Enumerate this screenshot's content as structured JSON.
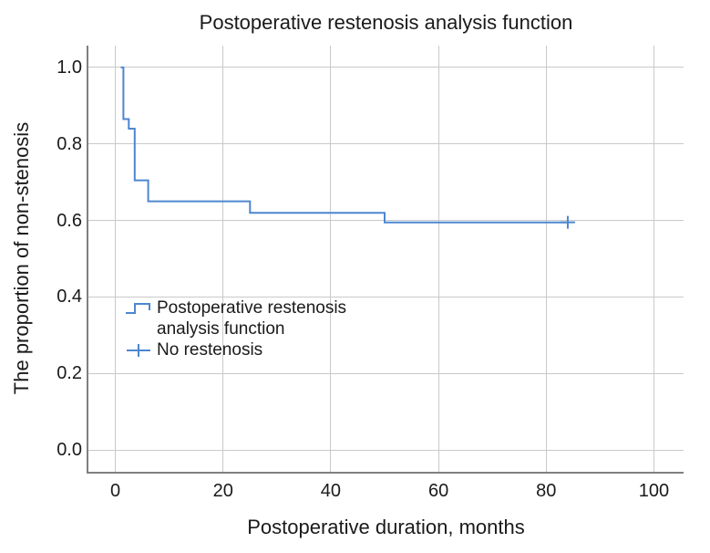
{
  "chart_data": {
    "type": "line",
    "subtype": "kaplan-meier-step",
    "title": "Postoperative restenosis analysis function",
    "xlabel": "Postoperative duration, months",
    "ylabel": "The proportion of non-stenosis",
    "x_ticks": [
      0,
      20,
      40,
      60,
      80,
      100
    ],
    "y_ticks": [
      "0.0",
      "0.2",
      "0.4",
      "0.6",
      "0.8",
      "1.0"
    ],
    "xlim": [
      -5,
      105.5
    ],
    "ylim": [
      -0.057,
      1.057
    ],
    "grid": true,
    "legend_position": "inside-left-middle",
    "series": [
      {
        "name": "Postoperative restenosis analysis function",
        "type": "step",
        "points": [
          [
            1.0,
            1.0
          ],
          [
            1.5,
            1.0
          ],
          [
            1.5,
            0.865
          ],
          [
            2.5,
            0.865
          ],
          [
            2.5,
            0.84
          ],
          [
            3.6,
            0.84
          ],
          [
            3.6,
            0.705
          ],
          [
            6.1,
            0.705
          ],
          [
            6.1,
            0.65
          ],
          [
            25,
            0.65
          ],
          [
            25,
            0.62
          ],
          [
            50,
            0.62
          ],
          [
            50,
            0.595
          ],
          [
            84,
            0.595
          ]
        ]
      }
    ],
    "censor_points": [
      [
        84,
        0.595
      ]
    ],
    "legend": [
      {
        "label": "Postoperative restenosis analysis function",
        "label_lines": [
          "Postoperative restenosis",
          "analysis function"
        ],
        "marker": "step-line-icon"
      },
      {
        "label": "No restenosis",
        "label_lines": [
          "No restenosis"
        ],
        "marker": "plus-icon"
      }
    ],
    "colors": {
      "curve": "#4d86d1",
      "gridline": "#c9c9c9",
      "axis": "#808080",
      "text": "#1a1a1a"
    }
  }
}
